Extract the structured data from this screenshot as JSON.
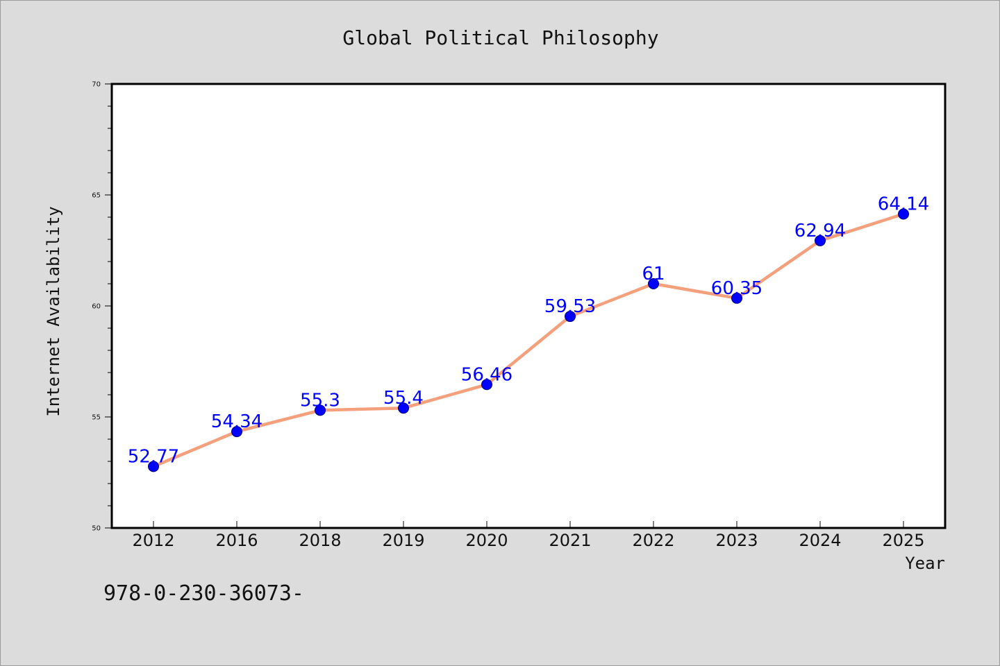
{
  "chart_data": {
    "type": "line",
    "title": "Global Political Philosophy",
    "xlabel": "Year",
    "ylabel": "Internet Availability",
    "categories": [
      "2012",
      "2016",
      "2018",
      "2019",
      "2020",
      "2021",
      "2022",
      "2023",
      "2024",
      "2025"
    ],
    "series": [
      {
        "values": [
          52.77,
          54.34,
          55.3,
          55.4,
          56.46,
          59.53,
          61,
          60.35,
          62.94,
          64.14
        ],
        "labels": [
          "52.77",
          "54.34",
          "55.3",
          "55.4",
          "56.46",
          "59.53",
          "61",
          "60.35",
          "62.94",
          "64.14"
        ]
      }
    ],
    "ylim": [
      50,
      70
    ],
    "yticks": [
      "50",
      "55",
      "60",
      "65",
      "70"
    ],
    "grid": false,
    "line_color": "#f4a07c",
    "marker_color": "#0000ff",
    "label_color": "#0000ff",
    "background_color": "#dcdcdc",
    "plot_background": "#ffffff"
  },
  "footer": {
    "text": "978-0-230-36073-"
  }
}
